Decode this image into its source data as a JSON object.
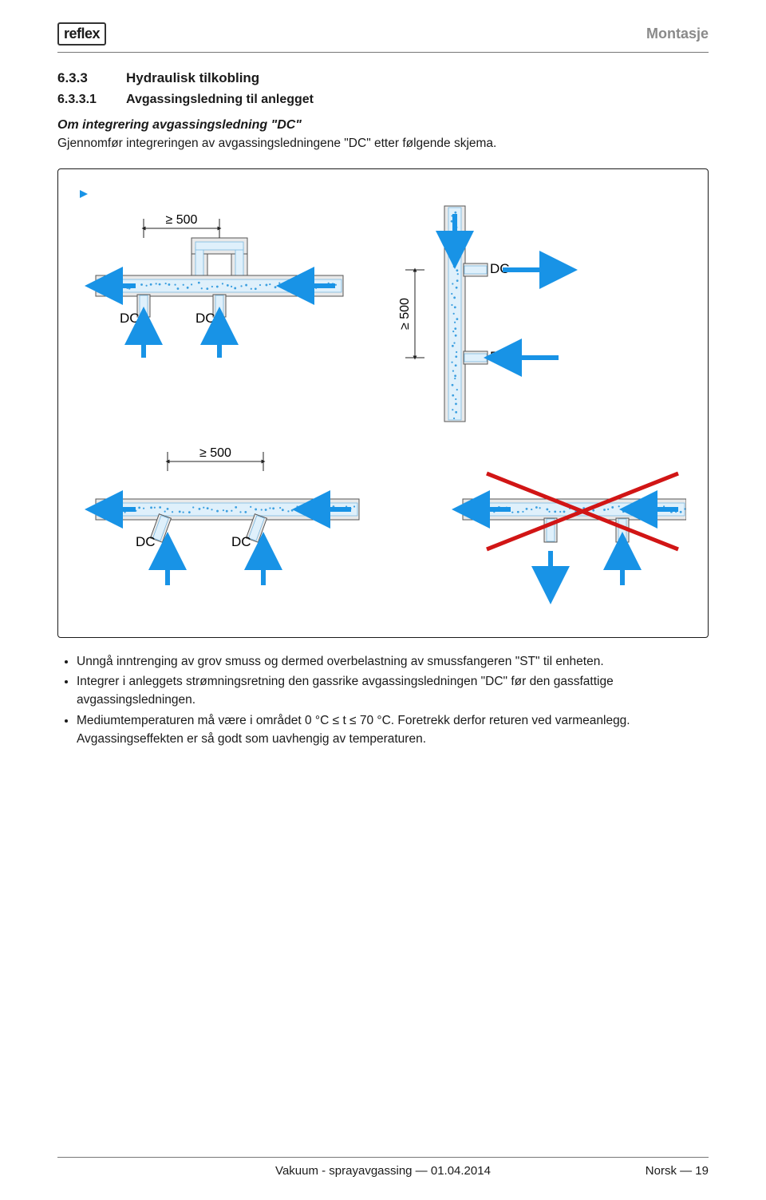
{
  "header": {
    "logo_text": "reflex",
    "right_title": "Montasje"
  },
  "section": {
    "number": "6.3.3",
    "title": "Hydraulisk tilkobling"
  },
  "subsection": {
    "number": "6.3.3.1",
    "title": "Avgassingsledning til anlegget"
  },
  "subhead": "Om integrering avgassingsledning \"DC\"",
  "intro": "Gjennomfør integreringen av avgassingsledningene \"DC\" etter følgende skjema.",
  "diagram": {
    "dim_label": "≥ 500",
    "dc_label": "DC",
    "colors": {
      "pipe_fill": "#e9e9e9",
      "pipe_stroke": "#555555",
      "water_fill": "#dff0fb",
      "water_stroke": "#7bb8e0",
      "arrow": "#1893e6",
      "dim_stroke": "#222222",
      "cross": "#d11515",
      "dot": "#3b9fe0"
    },
    "pipe_outer": 26,
    "pipe_inner": 16,
    "stub_outer": 16,
    "stub_inner": 10
  },
  "bullets": [
    "Unngå inntrenging av grov smuss og dermed overbelastning av smussfangeren \"ST\" til enheten.",
    "Integrer i anleggets strømningsretning den gassrike avgassingsledningen \"DC\" før den gassfattige avgassingsledningen.",
    "Mediumtemperaturen må være i området 0 °C ≤ t ≤ 70 °C. Foretrekk derfor returen ved varmeanlegg. Avgassingseffekten er så godt som uavhengig av temperaturen."
  ],
  "footer": {
    "center": "Vakuum - sprayavgassing — 01.04.2014",
    "right": "Norsk — 19"
  }
}
